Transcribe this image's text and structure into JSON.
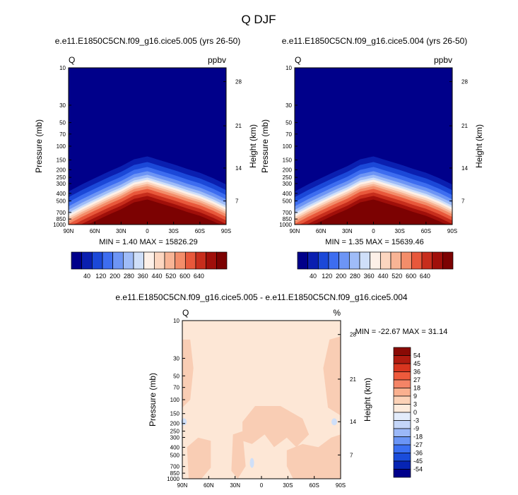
{
  "figure_title": "Q DJF",
  "colors": {
    "seq_colorbar": [
      "#00008a",
      "#0a1fb0",
      "#1b48d8",
      "#3d6df0",
      "#6d95f5",
      "#9fbcf8",
      "#cfdff9",
      "#fdf0e8",
      "#fcd6c0",
      "#f8b495",
      "#f38d6a",
      "#e8583b",
      "#c72d1c",
      "#a00f0a",
      "#7c0202"
    ],
    "diff_colorbar": [
      "#00008b",
      "#0624b4",
      "#1a4cdb",
      "#3a6ff2",
      "#6a95f6",
      "#9bb8f8",
      "#c4d6f9",
      "#e3ecfb",
      "#fdebdc",
      "#fcd2b7",
      "#fab08f",
      "#f48466",
      "#ee5a3c",
      "#d8351f",
      "#b01b10",
      "#8a0a05"
    ],
    "diff_bg": "#fde7d6",
    "diff_patch": "#f9cdb4",
    "diff_neg": "#cfdff8"
  },
  "chart_data": [
    {
      "type": "heatmap",
      "title": "e.e11.E1850C5CN.f09_g16.cice5.005 (yrs 26-50)",
      "corner_left": "Q",
      "corner_right": "ppbv",
      "xlabel": "",
      "ylabel": "Pressure (mb)",
      "ylabel_right": "Height (km)",
      "x_ticks": [
        "90N",
        "60N",
        "30N",
        "0",
        "30S",
        "60S",
        "90S"
      ],
      "y_ticks": [
        "10",
        "30",
        "50",
        "70",
        "100",
        "150",
        "200",
        "250",
        "300",
        "400",
        "500",
        "700",
        "850",
        "1000"
      ],
      "height_ticks": [
        "28",
        "21",
        "14",
        "7"
      ],
      "ylim": [
        1000,
        10
      ],
      "stats": "MIN =   1.40   MAX = 15826.29",
      "min": 1.4,
      "max": 15826.29,
      "colorbar_labels": [
        "40",
        "120",
        "200",
        "280",
        "360",
        "440",
        "520",
        "600"
      ],
      "colorbar_last": "640",
      "tropopause_profile": [
        {
          "lat": -90,
          "p": 650
        },
        {
          "lat": -75,
          "p": 540
        },
        {
          "lat": -60,
          "p": 460
        },
        {
          "lat": -45,
          "p": 410
        },
        {
          "lat": -30,
          "p": 360
        },
        {
          "lat": -15,
          "p": 320
        },
        {
          "lat": 0,
          "p": 285
        },
        {
          "lat": 15,
          "p": 310
        },
        {
          "lat": 30,
          "p": 380
        },
        {
          "lat": 45,
          "p": 450
        },
        {
          "lat": 60,
          "p": 540
        },
        {
          "lat": 75,
          "p": 650
        },
        {
          "lat": 90,
          "p": 800
        }
      ]
    },
    {
      "type": "heatmap",
      "title": "e.e11.E1850C5CN.f09_g16.cice5.004 (yrs 26-50)",
      "corner_left": "Q",
      "corner_right": "ppbv",
      "xlabel": "",
      "ylabel": "Pressure (mb)",
      "ylabel_right": "Height (km)",
      "x_ticks": [
        "90N",
        "60N",
        "30N",
        "0",
        "30S",
        "60S",
        "90S"
      ],
      "y_ticks": [
        "10",
        "30",
        "50",
        "70",
        "100",
        "150",
        "200",
        "250",
        "300",
        "400",
        "500",
        "700",
        "850",
        "1000"
      ],
      "height_ticks": [
        "28",
        "21",
        "14",
        "7"
      ],
      "ylim": [
        1000,
        10
      ],
      "stats": "MIN =   1.35   MAX = 15639.46",
      "min": 1.35,
      "max": 15639.46,
      "colorbar_labels": [
        "40",
        "120",
        "200",
        "280",
        "360",
        "440",
        "520",
        "600"
      ],
      "colorbar_last": "640",
      "tropopause_profile": [
        {
          "lat": -90,
          "p": 650
        },
        {
          "lat": -75,
          "p": 540
        },
        {
          "lat": -60,
          "p": 460
        },
        {
          "lat": -45,
          "p": 410
        },
        {
          "lat": -30,
          "p": 360
        },
        {
          "lat": -15,
          "p": 320
        },
        {
          "lat": 0,
          "p": 285
        },
        {
          "lat": 15,
          "p": 310
        },
        {
          "lat": 30,
          "p": 380
        },
        {
          "lat": 45,
          "p": 450
        },
        {
          "lat": 60,
          "p": 540
        },
        {
          "lat": 75,
          "p": 650
        },
        {
          "lat": 90,
          "p": 800
        }
      ]
    },
    {
      "type": "heatmap",
      "title": "e.e11.E1850C5CN.f09_g16.cice5.005 - e.e11.E1850C5CN.f09_g16.cice5.004",
      "corner_left": "Q",
      "corner_right": "%",
      "xlabel": "",
      "ylabel": "Pressure (mb)",
      "ylabel_right": "Height (km)",
      "x_ticks": [
        "90N",
        "60N",
        "30N",
        "0",
        "30S",
        "60S",
        "90S"
      ],
      "y_ticks": [
        "10",
        "30",
        "50",
        "70",
        "100",
        "150",
        "200",
        "250",
        "300",
        "400",
        "500",
        "700",
        "850",
        "1000"
      ],
      "height_ticks": [
        "28",
        "21",
        "14",
        "7"
      ],
      "ylim": [
        1000,
        10
      ],
      "stats": "MIN = -22.67   MAX =  31.14",
      "min": -22.67,
      "max": 31.14,
      "colorbar_labels": [
        "54",
        "45",
        "36",
        "27",
        "18",
        "9",
        "3",
        "0",
        "-3",
        "-9",
        "-18",
        "-27",
        "-36",
        "-45",
        "-54"
      ]
    }
  ]
}
